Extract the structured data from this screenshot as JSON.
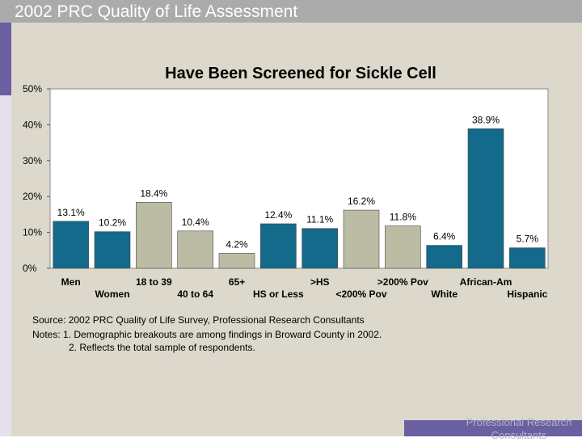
{
  "header": {
    "title": "2002 PRC Quality of Life Assessment"
  },
  "colors": {
    "dark": "#136a8a",
    "light": "#bcbca5",
    "panel": "#ddd8cc",
    "header": "#ababab",
    "accent": "#6a5fa0"
  },
  "chart_data": {
    "type": "bar",
    "title": "Have Been Screened for Sickle Cell",
    "ylim": [
      0,
      50
    ],
    "yticks": [
      "0%",
      "10%",
      "20%",
      "30%",
      "40%",
      "50%"
    ],
    "categories": [
      "Men",
      "Women",
      "18 to 39",
      "40 to 64",
      "65+",
      "HS or Less",
      ">HS",
      "<200% Pov",
      ">200% Pov",
      "White",
      "African-Am",
      "Hispanic"
    ],
    "values": [
      13.1,
      10.2,
      18.4,
      10.4,
      4.2,
      12.4,
      11.1,
      16.2,
      11.8,
      6.4,
      38.9,
      5.7
    ],
    "value_labels": [
      "13.1%",
      "10.2%",
      "18.4%",
      "10.4%",
      "4.2%",
      "12.4%",
      "11.1%",
      "16.2%",
      "11.8%",
      "6.4%",
      "38.9%",
      "5.7%"
    ],
    "shades": [
      "dark",
      "dark",
      "light",
      "light",
      "light",
      "dark",
      "dark",
      "light",
      "light",
      "dark",
      "dark",
      "dark"
    ]
  },
  "notes": {
    "source": "Source: 2002 PRC Quality of Life Survey, Professional Research Consultants",
    "note1": "Notes:   1. Demographic breakouts are among findings in Broward County in 2002.",
    "note2": "2. Reflects the total sample of respondents."
  },
  "footer": {
    "line1": "Professional Research",
    "line2": "Consultants"
  }
}
